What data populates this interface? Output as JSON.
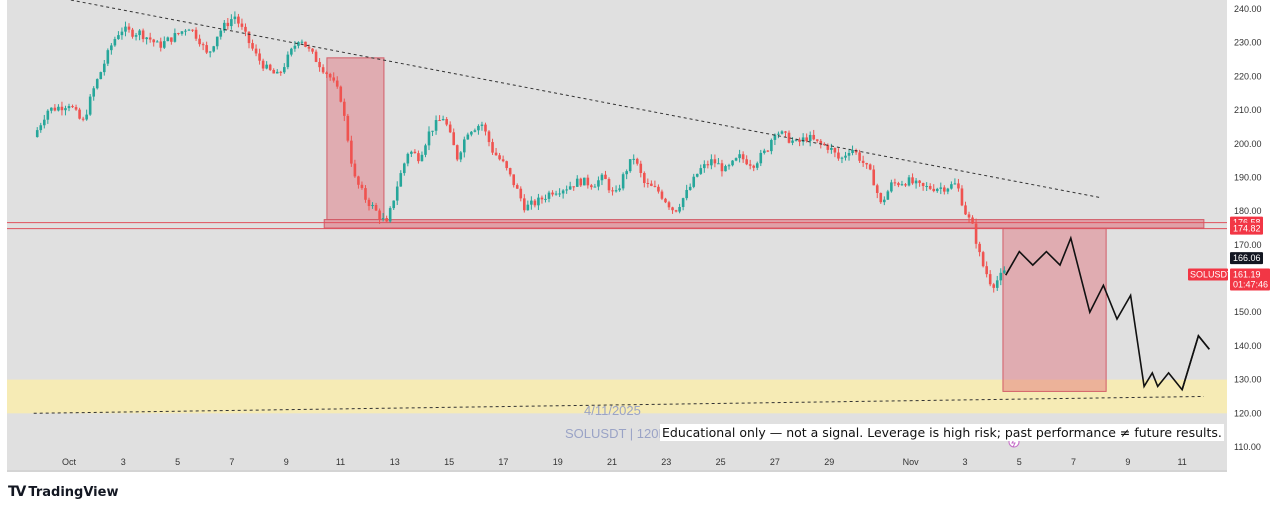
{
  "chart_data": {
    "type": "candlestick",
    "symbol": "SOLUSDT",
    "y_axis": {
      "min": 106,
      "max": 243,
      "ticks": [
        "240.00",
        "230.00",
        "220.00",
        "210.00",
        "200.00",
        "190.00",
        "180.00",
        "170.00",
        "160.00",
        "150.00",
        "140.00",
        "130.00",
        "120.00",
        "110.00"
      ]
    },
    "x_axis": {
      "ticks": [
        {
          "label": "Oct",
          "day": 0
        },
        {
          "label": "3",
          "day": 2
        },
        {
          "label": "5",
          "day": 4
        },
        {
          "label": "7",
          "day": 6
        },
        {
          "label": "9",
          "day": 8
        },
        {
          "label": "11",
          "day": 10
        },
        {
          "label": "13",
          "day": 12
        },
        {
          "label": "15",
          "day": 14
        },
        {
          "label": "17",
          "day": 16
        },
        {
          "label": "19",
          "day": 18
        },
        {
          "label": "21",
          "day": 20
        },
        {
          "label": "23",
          "day": 22
        },
        {
          "label": "25",
          "day": 24
        },
        {
          "label": "27",
          "day": 26
        },
        {
          "label": "29",
          "day": 28
        },
        {
          "label": "Nov",
          "day": 31
        },
        {
          "label": "3",
          "day": 33
        },
        {
          "label": "5",
          "day": 35
        },
        {
          "label": "7",
          "day": 37
        },
        {
          "label": "9",
          "day": 39
        },
        {
          "label": "11",
          "day": 41
        }
      ]
    },
    "price_path": [
      [
        -1.3,
        202
      ],
      [
        -0.8,
        210
      ],
      [
        -0.3,
        211
      ],
      [
        0,
        212
      ],
      [
        0.5,
        206
      ],
      [
        0.9,
        216
      ],
      [
        1.2,
        222
      ],
      [
        1.6,
        230
      ],
      [
        1.9,
        234
      ],
      [
        2.3,
        233
      ],
      [
        2.6,
        233
      ],
      [
        3.0,
        231
      ],
      [
        3.3,
        229
      ],
      [
        3.7,
        231
      ],
      [
        4.1,
        233
      ],
      [
        4.4,
        235
      ],
      [
        4.8,
        231
      ],
      [
        5.1,
        226
      ],
      [
        5.5,
        233
      ],
      [
        6.1,
        238
      ],
      [
        6.5,
        232
      ],
      [
        6.9,
        226
      ],
      [
        7.3,
        222
      ],
      [
        7.7,
        220
      ],
      [
        8.1,
        226
      ],
      [
        8.5,
        232
      ],
      [
        8.8,
        228
      ],
      [
        9.2,
        224
      ],
      [
        9.6,
        220
      ],
      [
        10.0,
        214
      ],
      [
        10.2,
        205
      ],
      [
        10.5,
        190
      ],
      [
        10.9,
        184
      ],
      [
        11.3,
        180
      ],
      [
        11.7,
        176
      ],
      [
        12.1,
        188
      ],
      [
        12.5,
        198
      ],
      [
        12.9,
        196
      ],
      [
        13.3,
        204
      ],
      [
        13.8,
        208
      ],
      [
        14.3,
        196
      ],
      [
        14.7,
        204
      ],
      [
        15.2,
        206
      ],
      [
        15.6,
        198
      ],
      [
        16.0,
        194
      ],
      [
        16.4,
        188
      ],
      [
        16.8,
        181
      ],
      [
        17.3,
        183
      ],
      [
        17.8,
        186
      ],
      [
        18.3,
        187
      ],
      [
        18.8,
        189
      ],
      [
        19.3,
        188
      ],
      [
        19.7,
        190
      ],
      [
        20.1,
        184
      ],
      [
        20.5,
        192
      ],
      [
        20.8,
        196
      ],
      [
        21.2,
        188
      ],
      [
        21.7,
        186
      ],
      [
        22.0,
        183
      ],
      [
        22.3,
        180
      ],
      [
        22.8,
        186
      ],
      [
        23.2,
        192
      ],
      [
        23.7,
        195
      ],
      [
        24.2,
        192
      ],
      [
        24.7,
        196
      ],
      [
        25.2,
        194
      ],
      [
        25.7,
        198
      ],
      [
        26.0,
        204
      ],
      [
        26.4,
        202
      ],
      [
        26.8,
        200
      ],
      [
        27.2,
        202
      ],
      [
        27.6,
        200
      ],
      [
        28.0,
        199
      ],
      [
        28.4,
        195
      ],
      [
        28.8,
        199
      ],
      [
        29.2,
        195
      ],
      [
        29.6,
        190
      ],
      [
        29.9,
        182
      ],
      [
        30.3,
        188
      ],
      [
        30.9,
        189
      ],
      [
        31.4,
        187
      ],
      [
        32.2,
        187
      ],
      [
        32.7,
        188
      ],
      [
        33.0,
        180
      ],
      [
        33.3,
        175
      ],
      [
        33.6,
        165
      ],
      [
        34.0,
        158
      ],
      [
        34.5,
        162
      ]
    ],
    "trendline_upper": [
      [
        -0.8,
        244
      ],
      [
        38.0,
        184
      ]
    ],
    "trendline_lower": [
      [
        -1.3,
        120
      ],
      [
        41.8,
        125
      ]
    ],
    "support_band": {
      "from": 175,
      "to": 177.5
    },
    "resistance_lines": [
      176.58,
      174.82
    ],
    "demand_zone": {
      "from": 120,
      "to": 130
    },
    "boxes": [
      {
        "day_from": 9.5,
        "day_to": 11.6,
        "from": 177.5,
        "to": 225.5
      },
      {
        "day_from": 34.4,
        "day_to": 38.2,
        "from": 126.5,
        "to": 175
      }
    ],
    "projection": [
      [
        34.5,
        161
      ],
      [
        35.0,
        168
      ],
      [
        35.5,
        164
      ],
      [
        36.0,
        168
      ],
      [
        36.5,
        164
      ],
      [
        36.9,
        172
      ],
      [
        37.6,
        150
      ],
      [
        38.1,
        158
      ],
      [
        38.6,
        148
      ],
      [
        39.1,
        155
      ],
      [
        39.6,
        128
      ],
      [
        39.9,
        132
      ],
      [
        40.1,
        128
      ],
      [
        40.5,
        132
      ],
      [
        41.0,
        127
      ],
      [
        41.6,
        143
      ],
      [
        42.0,
        139
      ]
    ],
    "price_labels": [
      {
        "text": "176.58",
        "value": 176.58,
        "color": "#f23645"
      },
      {
        "text": "174.82",
        "value": 174.82,
        "color": "#f23645"
      },
      {
        "text": "166.06",
        "value": 166.06,
        "color": "#131722"
      },
      {
        "text": "161.19",
        "value": 161.19,
        "color": "#f23645"
      }
    ],
    "current_price": {
      "symbol": "SOLUSDT",
      "price": "161.19",
      "countdown": "01:47:46"
    }
  },
  "watermark": {
    "date": "4/11/2025",
    "symbol": "SOLUSDT | 120M"
  },
  "disclaimer": "Educational only — not a signal. Leverage is high risk; past performance ≠ future results.",
  "brand": {
    "logo": "TV",
    "name": "TradingView"
  },
  "colors": {
    "up": "#26a69a",
    "down": "#ef5350",
    "zone_red": "#e06c78",
    "zone_yellow": "#f8ecb0",
    "plot_bg": "#e0e0e0",
    "tag_red": "#f23645",
    "tag_dark": "#131722"
  }
}
